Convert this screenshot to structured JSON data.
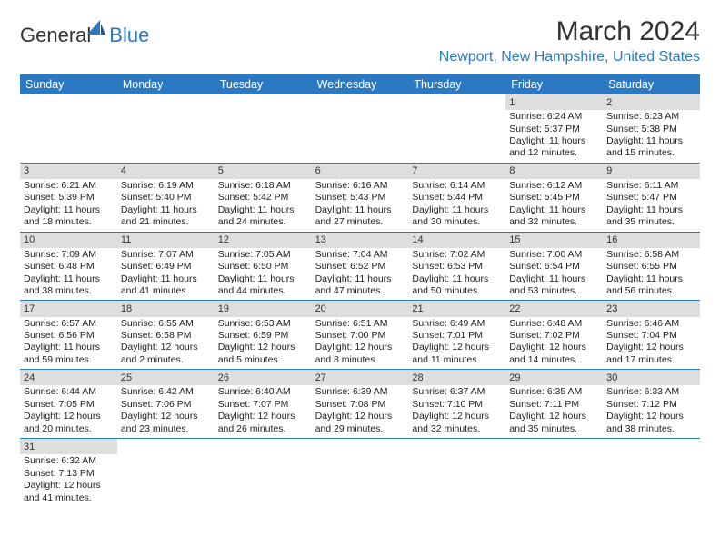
{
  "logo": {
    "text1": "General",
    "text2": "Blue"
  },
  "title": "March 2024",
  "location": "Newport, New Hampshire, United States",
  "colors": {
    "accent": "#2a79c2",
    "header_bg": "#2a79c2",
    "daynum_bg": "#dedede",
    "border": "#2a79c2",
    "text": "#222222",
    "bg": "#ffffff"
  },
  "day_names": [
    "Sunday",
    "Monday",
    "Tuesday",
    "Wednesday",
    "Thursday",
    "Friday",
    "Saturday"
  ],
  "weeks": [
    [
      null,
      null,
      null,
      null,
      null,
      {
        "n": "1",
        "sr": "Sunrise: 6:24 AM",
        "ss": "Sunset: 5:37 PM",
        "d1": "Daylight: 11 hours",
        "d2": "and 12 minutes."
      },
      {
        "n": "2",
        "sr": "Sunrise: 6:23 AM",
        "ss": "Sunset: 5:38 PM",
        "d1": "Daylight: 11 hours",
        "d2": "and 15 minutes."
      }
    ],
    [
      {
        "n": "3",
        "sr": "Sunrise: 6:21 AM",
        "ss": "Sunset: 5:39 PM",
        "d1": "Daylight: 11 hours",
        "d2": "and 18 minutes."
      },
      {
        "n": "4",
        "sr": "Sunrise: 6:19 AM",
        "ss": "Sunset: 5:40 PM",
        "d1": "Daylight: 11 hours",
        "d2": "and 21 minutes."
      },
      {
        "n": "5",
        "sr": "Sunrise: 6:18 AM",
        "ss": "Sunset: 5:42 PM",
        "d1": "Daylight: 11 hours",
        "d2": "and 24 minutes."
      },
      {
        "n": "6",
        "sr": "Sunrise: 6:16 AM",
        "ss": "Sunset: 5:43 PM",
        "d1": "Daylight: 11 hours",
        "d2": "and 27 minutes."
      },
      {
        "n": "7",
        "sr": "Sunrise: 6:14 AM",
        "ss": "Sunset: 5:44 PM",
        "d1": "Daylight: 11 hours",
        "d2": "and 30 minutes."
      },
      {
        "n": "8",
        "sr": "Sunrise: 6:12 AM",
        "ss": "Sunset: 5:45 PM",
        "d1": "Daylight: 11 hours",
        "d2": "and 32 minutes."
      },
      {
        "n": "9",
        "sr": "Sunrise: 6:11 AM",
        "ss": "Sunset: 5:47 PM",
        "d1": "Daylight: 11 hours",
        "d2": "and 35 minutes."
      }
    ],
    [
      {
        "n": "10",
        "sr": "Sunrise: 7:09 AM",
        "ss": "Sunset: 6:48 PM",
        "d1": "Daylight: 11 hours",
        "d2": "and 38 minutes."
      },
      {
        "n": "11",
        "sr": "Sunrise: 7:07 AM",
        "ss": "Sunset: 6:49 PM",
        "d1": "Daylight: 11 hours",
        "d2": "and 41 minutes."
      },
      {
        "n": "12",
        "sr": "Sunrise: 7:05 AM",
        "ss": "Sunset: 6:50 PM",
        "d1": "Daylight: 11 hours",
        "d2": "and 44 minutes."
      },
      {
        "n": "13",
        "sr": "Sunrise: 7:04 AM",
        "ss": "Sunset: 6:52 PM",
        "d1": "Daylight: 11 hours",
        "d2": "and 47 minutes."
      },
      {
        "n": "14",
        "sr": "Sunrise: 7:02 AM",
        "ss": "Sunset: 6:53 PM",
        "d1": "Daylight: 11 hours",
        "d2": "and 50 minutes."
      },
      {
        "n": "15",
        "sr": "Sunrise: 7:00 AM",
        "ss": "Sunset: 6:54 PM",
        "d1": "Daylight: 11 hours",
        "d2": "and 53 minutes."
      },
      {
        "n": "16",
        "sr": "Sunrise: 6:58 AM",
        "ss": "Sunset: 6:55 PM",
        "d1": "Daylight: 11 hours",
        "d2": "and 56 minutes."
      }
    ],
    [
      {
        "n": "17",
        "sr": "Sunrise: 6:57 AM",
        "ss": "Sunset: 6:56 PM",
        "d1": "Daylight: 11 hours",
        "d2": "and 59 minutes."
      },
      {
        "n": "18",
        "sr": "Sunrise: 6:55 AM",
        "ss": "Sunset: 6:58 PM",
        "d1": "Daylight: 12 hours",
        "d2": "and 2 minutes."
      },
      {
        "n": "19",
        "sr": "Sunrise: 6:53 AM",
        "ss": "Sunset: 6:59 PM",
        "d1": "Daylight: 12 hours",
        "d2": "and 5 minutes."
      },
      {
        "n": "20",
        "sr": "Sunrise: 6:51 AM",
        "ss": "Sunset: 7:00 PM",
        "d1": "Daylight: 12 hours",
        "d2": "and 8 minutes."
      },
      {
        "n": "21",
        "sr": "Sunrise: 6:49 AM",
        "ss": "Sunset: 7:01 PM",
        "d1": "Daylight: 12 hours",
        "d2": "and 11 minutes."
      },
      {
        "n": "22",
        "sr": "Sunrise: 6:48 AM",
        "ss": "Sunset: 7:02 PM",
        "d1": "Daylight: 12 hours",
        "d2": "and 14 minutes."
      },
      {
        "n": "23",
        "sr": "Sunrise: 6:46 AM",
        "ss": "Sunset: 7:04 PM",
        "d1": "Daylight: 12 hours",
        "d2": "and 17 minutes."
      }
    ],
    [
      {
        "n": "24",
        "sr": "Sunrise: 6:44 AM",
        "ss": "Sunset: 7:05 PM",
        "d1": "Daylight: 12 hours",
        "d2": "and 20 minutes."
      },
      {
        "n": "25",
        "sr": "Sunrise: 6:42 AM",
        "ss": "Sunset: 7:06 PM",
        "d1": "Daylight: 12 hours",
        "d2": "and 23 minutes."
      },
      {
        "n": "26",
        "sr": "Sunrise: 6:40 AM",
        "ss": "Sunset: 7:07 PM",
        "d1": "Daylight: 12 hours",
        "d2": "and 26 minutes."
      },
      {
        "n": "27",
        "sr": "Sunrise: 6:39 AM",
        "ss": "Sunset: 7:08 PM",
        "d1": "Daylight: 12 hours",
        "d2": "and 29 minutes."
      },
      {
        "n": "28",
        "sr": "Sunrise: 6:37 AM",
        "ss": "Sunset: 7:10 PM",
        "d1": "Daylight: 12 hours",
        "d2": "and 32 minutes."
      },
      {
        "n": "29",
        "sr": "Sunrise: 6:35 AM",
        "ss": "Sunset: 7:11 PM",
        "d1": "Daylight: 12 hours",
        "d2": "and 35 minutes."
      },
      {
        "n": "30",
        "sr": "Sunrise: 6:33 AM",
        "ss": "Sunset: 7:12 PM",
        "d1": "Daylight: 12 hours",
        "d2": "and 38 minutes."
      }
    ],
    [
      {
        "n": "31",
        "sr": "Sunrise: 6:32 AM",
        "ss": "Sunset: 7:13 PM",
        "d1": "Daylight: 12 hours",
        "d2": "and 41 minutes."
      },
      null,
      null,
      null,
      null,
      null,
      null
    ]
  ]
}
